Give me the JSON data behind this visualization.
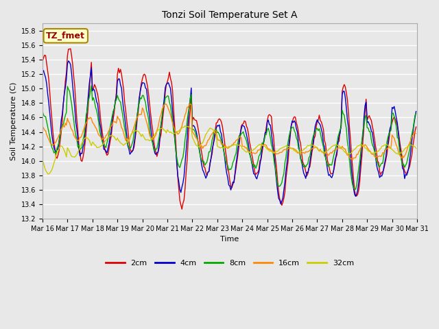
{
  "title": "Tonzi Soil Temperature Set A",
  "xlabel": "Time",
  "ylabel": "Soil Temperature (C)",
  "ylim": [
    13.2,
    15.9
  ],
  "xlim": [
    0,
    360
  ],
  "annotation_text": "TZ_fmet",
  "annotation_color": "#990000",
  "annotation_bg": "#ffffcc",
  "annotation_border": "#aa8800",
  "fig_bg_color": "#e8e8e8",
  "plot_bg": "#e8e8e8",
  "grid_color": "#ffffff",
  "series_colors": {
    "2cm": "#dd0000",
    "4cm": "#0000cc",
    "8cm": "#00aa00",
    "16cm": "#ff8800",
    "32cm": "#cccc00"
  },
  "x_tick_labels": [
    "Mar 16",
    "Mar 17",
    "Mar 18",
    "Mar 19",
    "Mar 20",
    "Mar 21",
    "Mar 22",
    "Mar 23",
    "Mar 24",
    "Mar 25",
    "Mar 26",
    "Mar 27",
    "Mar 28",
    "Mar 29",
    "Mar 30",
    "Mar 31"
  ],
  "y_ticks": [
    13.2,
    13.4,
    13.6,
    13.8,
    14.0,
    14.2,
    14.4,
    14.6,
    14.8,
    15.0,
    15.2,
    15.4,
    15.6,
    15.8
  ],
  "linewidth": 1.0,
  "title_fontsize": 10,
  "axis_label_fontsize": 8,
  "tick_fontsize": 7,
  "legend_fontsize": 8
}
